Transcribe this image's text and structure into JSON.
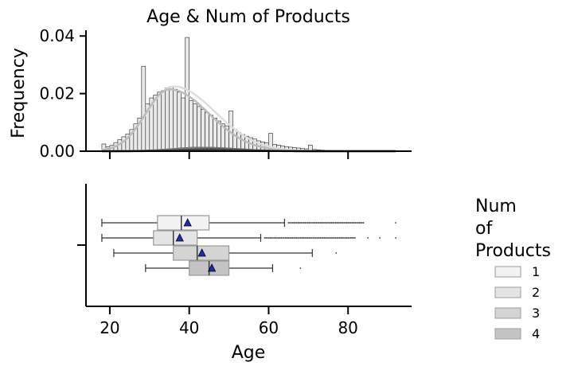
{
  "chart_data": [
    {
      "type": "histogram",
      "title": "Age & Num of Products",
      "xlabel": "",
      "ylabel": "Frequency",
      "xlim": [
        14,
        96
      ],
      "ylim": [
        0,
        0.042
      ],
      "yticks": [
        "0.00",
        "0.02",
        "0.04"
      ],
      "hist_bin_start": 18,
      "hist_bin_width": 1,
      "hist_density": [
        0.0025,
        0.0015,
        0.002,
        0.003,
        0.004,
        0.005,
        0.006,
        0.0075,
        0.0095,
        0.0115,
        0.0295,
        0.0165,
        0.0185,
        0.0195,
        0.0205,
        0.021,
        0.022,
        0.0225,
        0.0215,
        0.0205,
        0.0185,
        0.0395,
        0.0175,
        0.0165,
        0.0155,
        0.0145,
        0.0135,
        0.0125,
        0.0115,
        0.0105,
        0.0095,
        0.0088,
        0.014,
        0.0075,
        0.0065,
        0.0058,
        0.0052,
        0.0047,
        0.0042,
        0.0036,
        0.0032,
        0.0029,
        0.0062,
        0.0024,
        0.0021,
        0.0018,
        0.0016,
        0.0014,
        0.0012,
        0.0011,
        0.0009,
        0.0008,
        0.0021,
        0.0006,
        0.0005,
        0.0004,
        0.0003,
        0.0003,
        0.0002,
        0.0002,
        0.0002,
        0.0001,
        0.0001,
        0.0001,
        0.0001,
        0.0001,
        0.0001,
        0.0001,
        0.0001,
        0.0001,
        0.0001,
        0.0001,
        0.0001,
        0.0001
      ],
      "kde_series": [
        {
          "name": "1",
          "peak_x": 36,
          "peak_y": 0.0225,
          "sd_left": 6.5,
          "sd_right": 10.5,
          "color": "#dddddd"
        },
        {
          "name": "2",
          "peak_x": 35,
          "peak_y": 0.0215,
          "sd_left": 6.0,
          "sd_right": 10.0,
          "color": "#bbbbbb"
        },
        {
          "name": "3",
          "peak_x": 43,
          "peak_y": 0.0012,
          "sd_left": 7.0,
          "sd_right": 9.0,
          "color": "#777777"
        },
        {
          "name": "4",
          "peak_x": 45,
          "peak_y": 0.0006,
          "sd_left": 7.0,
          "sd_right": 8.0,
          "color": "#444444"
        }
      ]
    },
    {
      "type": "boxplot",
      "xlabel": "Age",
      "xlim": [
        14,
        96
      ],
      "xticks": [
        20,
        40,
        60,
        80
      ],
      "series": [
        {
          "name": "1",
          "whisker_low": 18,
          "q1": 32,
          "median": 38,
          "q3": 45,
          "whisker_high": 64,
          "mean": 39.6,
          "outlier_start": 65,
          "outlier_end": 84,
          "outliers_extra": [
            92
          ],
          "color": "#f2f2f2"
        },
        {
          "name": "2",
          "whisker_low": 18,
          "q1": 31,
          "median": 36,
          "q3": 42,
          "whisker_high": 58,
          "mean": 37.6,
          "outlier_start": 59,
          "outlier_end": 82,
          "outliers_extra": [
            85,
            88,
            92
          ],
          "color": "#e4e4e4"
        },
        {
          "name": "3",
          "whisker_low": 21,
          "q1": 36,
          "median": 42,
          "q3": 50,
          "whisker_high": 71,
          "mean": 43.2,
          "outlier_start": null,
          "outlier_end": null,
          "outliers_extra": [
            77
          ],
          "color": "#d4d4d4"
        },
        {
          "name": "4",
          "whisker_low": 29,
          "q1": 40,
          "median": 45,
          "q3": 50,
          "whisker_high": 61,
          "mean": 45.7,
          "outlier_start": null,
          "outlier_end": null,
          "outliers_extra": [
            68
          ],
          "color": "#c4c4c4"
        }
      ]
    }
  ],
  "legend": {
    "title_lines": [
      "Num",
      "of",
      "Products"
    ],
    "entries": [
      {
        "label": "1",
        "color": "#f2f2f2"
      },
      {
        "label": "2",
        "color": "#e4e4e4"
      },
      {
        "label": "3",
        "color": "#d4d4d4"
      },
      {
        "label": "4",
        "color": "#c4c4c4"
      }
    ]
  }
}
